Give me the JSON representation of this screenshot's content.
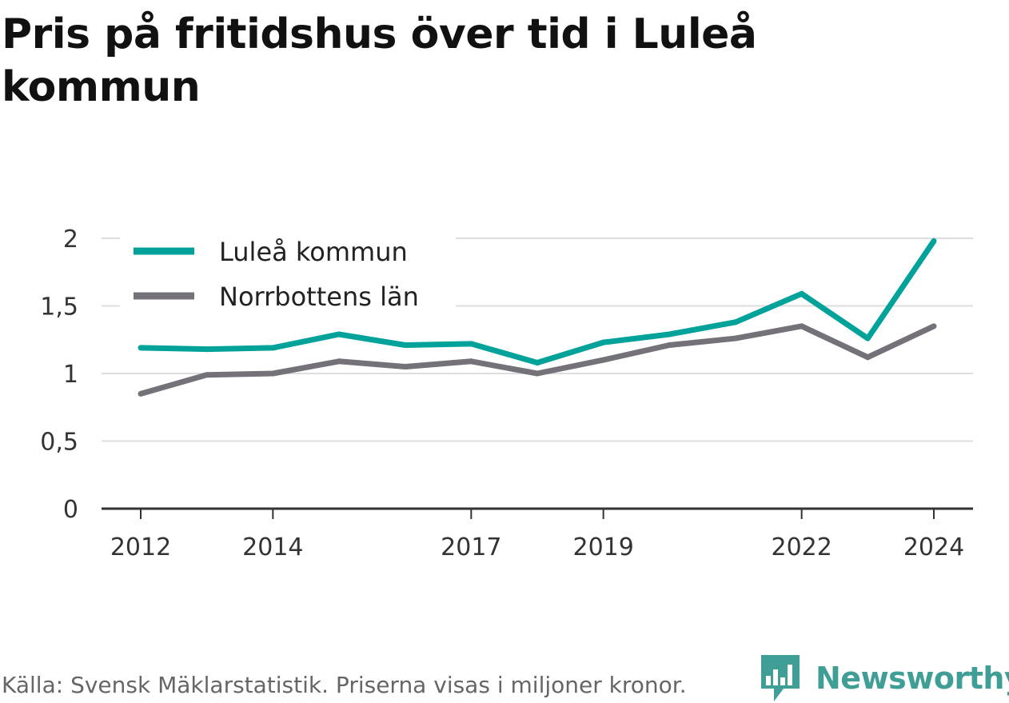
{
  "title": "Pris på fritidshus över tid i Luleå kommun",
  "footer": {
    "source": "Källa: Svensk Mäklarstatistik. Priserna visas i miljoner kronor."
  },
  "brand": {
    "name": "Newsworthy",
    "icon": "newsworthy-chart-bubble-icon",
    "color": "#3f9e95"
  },
  "colors": {
    "lulea": "#00a29a",
    "norrbotten": "#747278",
    "grid": "#dddddd",
    "axis": "#333333"
  },
  "chart_data": {
    "type": "line",
    "x": [
      2012,
      2013,
      2014,
      2015,
      2016,
      2017,
      2018,
      2019,
      2020,
      2021,
      2022,
      2023,
      2024
    ],
    "x_tick_values": [
      2012,
      2014,
      2017,
      2019,
      2022,
      2024
    ],
    "x_tick_labels": [
      "2012",
      "2014",
      "2017",
      "2019",
      "2022",
      "2024"
    ],
    "y_tick_values": [
      0,
      0.5,
      1,
      1.5,
      2
    ],
    "y_tick_labels": [
      "0",
      "0,5",
      "1",
      "1,5",
      "2"
    ],
    "ylim": [
      0,
      2
    ],
    "grid": true,
    "legend_position": "top-left",
    "series": [
      {
        "name": "Luleå kommun",
        "color": "#00a29a",
        "values": [
          1.19,
          1.18,
          1.19,
          1.29,
          1.21,
          1.22,
          1.08,
          1.23,
          1.29,
          1.38,
          1.59,
          1.26,
          1.98
        ]
      },
      {
        "name": "Norrbottens län",
        "color": "#747278",
        "values": [
          0.85,
          0.99,
          1.0,
          1.09,
          1.05,
          1.09,
          1.0,
          1.1,
          1.21,
          1.26,
          1.35,
          1.12,
          1.35
        ]
      }
    ]
  }
}
